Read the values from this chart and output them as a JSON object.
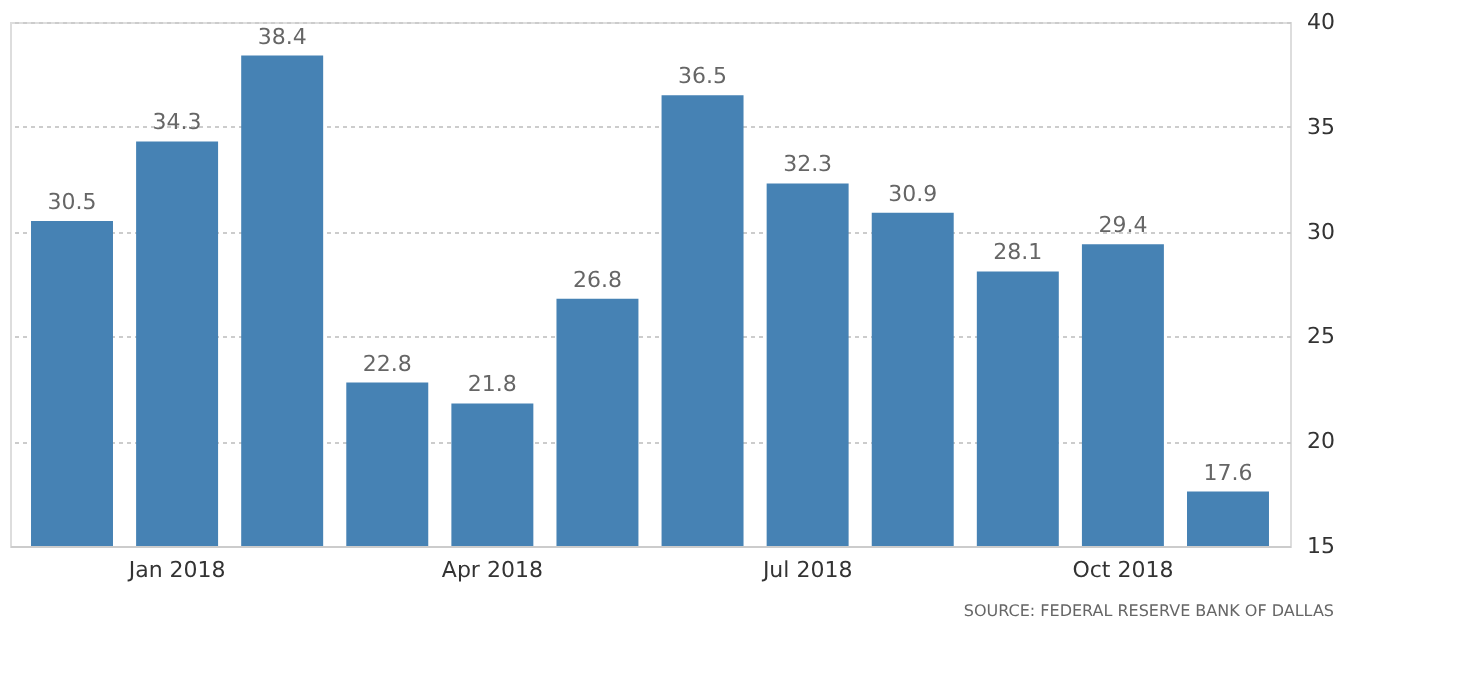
{
  "chart_data": {
    "type": "bar",
    "categories": [
      null,
      "Jan 2018",
      null,
      null,
      "Apr 2018",
      null,
      null,
      "Jul 2018",
      null,
      null,
      "Oct 2018",
      null
    ],
    "values": [
      30.5,
      34.3,
      38.4,
      22.8,
      21.8,
      26.8,
      36.5,
      32.3,
      30.9,
      28.1,
      29.4,
      17.6
    ],
    "color": "#4682b4",
    "ylim": [
      15,
      40
    ],
    "yticks": [
      15,
      20,
      25,
      30,
      35,
      40
    ],
    "grid": "y",
    "data_labels": true,
    "annotations": [
      "SOURCE: FEDERAL RESERVE BANK OF DALLAS"
    ]
  }
}
